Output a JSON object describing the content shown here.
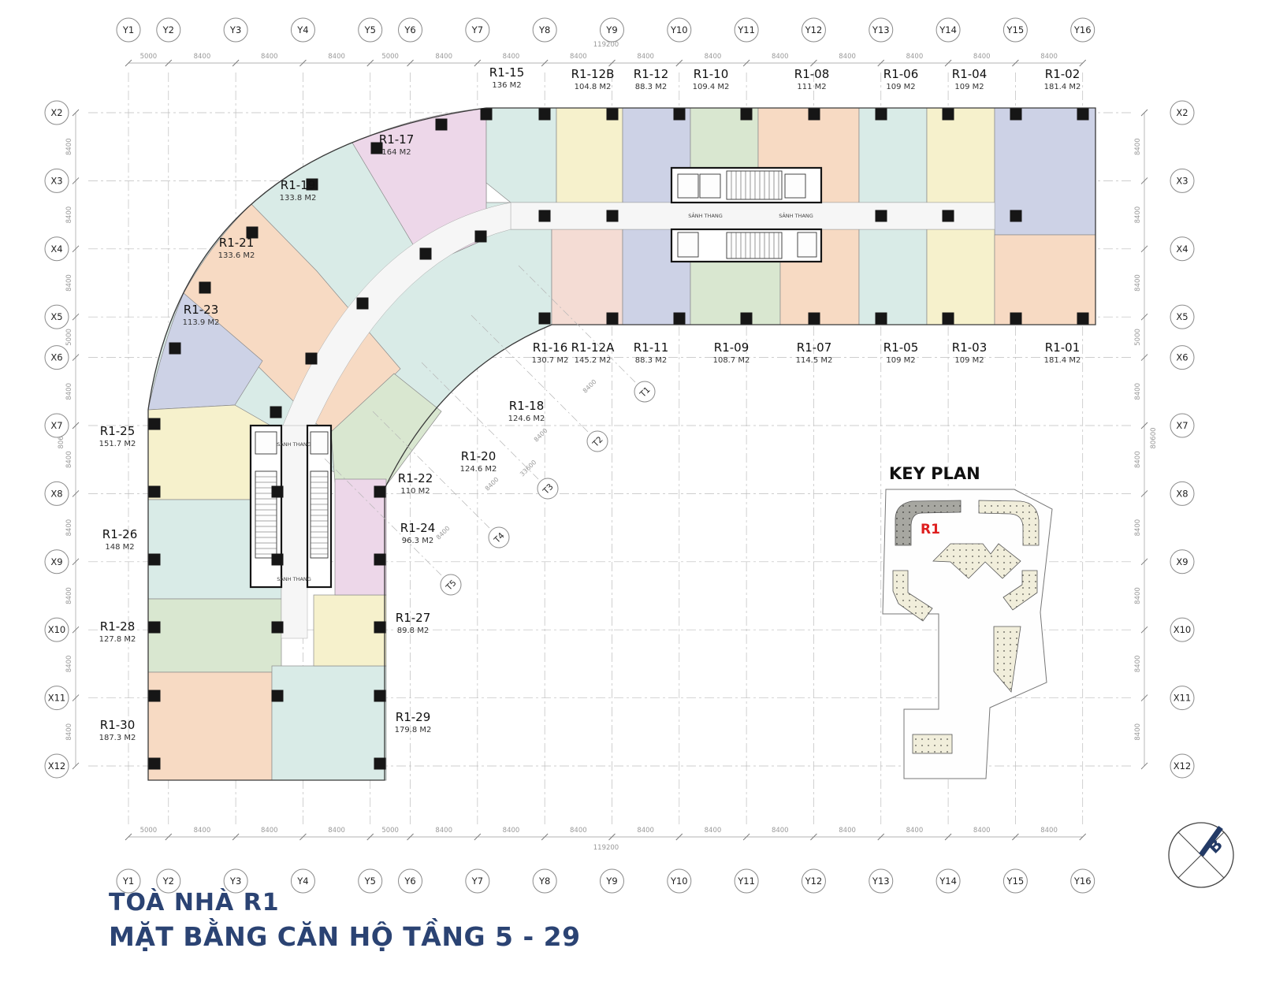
{
  "title": {
    "building": "TOÀ NHÀ R1",
    "subtitle": "MẶT BẰNG CĂN HỘ TẦNG 5 - 29"
  },
  "key_plan": {
    "title": "KEY PLAN",
    "highlight": "R1"
  },
  "compass": {
    "label": "B"
  },
  "core": {
    "lobby_label": "SẢNH THANG"
  },
  "grid": {
    "y": {
      "labels": [
        "Y1",
        "Y2",
        "Y3",
        "Y4",
        "Y5",
        "Y6",
        "Y7",
        "Y8",
        "Y9",
        "Y10",
        "Y11",
        "Y12",
        "Y13",
        "Y14",
        "Y15",
        "Y16"
      ],
      "segments": [
        "5000",
        "8400",
        "8400",
        "8400",
        "5000",
        "8400",
        "8400",
        "8400",
        "8400",
        "8400",
        "8400",
        "8400",
        "8400",
        "8400",
        "8400"
      ],
      "total": "119200"
    },
    "x": {
      "labels": [
        "X2",
        "X3",
        "X4",
        "X5",
        "X6",
        "X7",
        "X8",
        "X9",
        "X10",
        "X11",
        "X12"
      ],
      "segments": [
        "8400",
        "8400",
        "8400",
        "5000",
        "8400",
        "8400",
        "8400",
        "8400",
        "8400",
        "8400"
      ],
      "total": "80600"
    },
    "t": {
      "labels": [
        "T1",
        "T2",
        "T3",
        "T4",
        "T5"
      ],
      "segment": "8400",
      "total": "33600"
    }
  },
  "units": [
    {
      "id": "R1-01",
      "area": "181.4 M2",
      "color_key": "orange"
    },
    {
      "id": "R1-02",
      "area": "181.4 M2",
      "color_key": "lavender"
    },
    {
      "id": "R1-03",
      "area": "109 M2",
      "color_key": "yellow"
    },
    {
      "id": "R1-04",
      "area": "109 M2",
      "color_key": "yellow"
    },
    {
      "id": "R1-05",
      "area": "109 M2",
      "color_key": "teal"
    },
    {
      "id": "R1-06",
      "area": "109 M2",
      "color_key": "teal"
    },
    {
      "id": "R1-07",
      "area": "114.5 M2",
      "color_key": "orange"
    },
    {
      "id": "R1-08",
      "area": "111 M2",
      "color_key": "orange"
    },
    {
      "id": "R1-09",
      "area": "108.7 M2",
      "color_key": "green"
    },
    {
      "id": "R1-10",
      "area": "109.4 M2",
      "color_key": "green"
    },
    {
      "id": "R1-11",
      "area": "88.3 M2",
      "color_key": "lavender"
    },
    {
      "id": "R1-12",
      "area": "88.3 M2",
      "color_key": "lavender"
    },
    {
      "id": "R1-12A",
      "area": "145.2 M2",
      "color_key": "salmon"
    },
    {
      "id": "R1-12B",
      "area": "104.8 M2",
      "color_key": "yellow"
    },
    {
      "id": "R1-15",
      "area": "136 M2",
      "color_key": "teal"
    },
    {
      "id": "R1-16",
      "area": "130.7 M2",
      "color_key": "teal"
    },
    {
      "id": "R1-17",
      "area": "164 M2",
      "color_key": "pink"
    },
    {
      "id": "R1-18",
      "area": "124.6 M2",
      "color_key": "teal"
    },
    {
      "id": "R1-19",
      "area": "133.8 M2",
      "color_key": "teal"
    },
    {
      "id": "R1-20",
      "area": "124.6 M2",
      "color_key": "orange"
    },
    {
      "id": "R1-21",
      "area": "133.6 M2",
      "color_key": "orange"
    },
    {
      "id": "R1-22",
      "area": "110 M2",
      "color_key": "green"
    },
    {
      "id": "R1-23",
      "area": "113.9 M2",
      "color_key": "lavender"
    },
    {
      "id": "R1-24",
      "area": "96.3 M2",
      "color_key": "pink"
    },
    {
      "id": "R1-25",
      "area": "151.7 M2",
      "color_key": "yellow"
    },
    {
      "id": "R1-26",
      "area": "148 M2",
      "color_key": "teal"
    },
    {
      "id": "R1-27",
      "area": "89.8 M2",
      "color_key": "yellow"
    },
    {
      "id": "R1-28",
      "area": "127.8 M2",
      "color_key": "green"
    },
    {
      "id": "R1-29",
      "area": "179.8 M2",
      "color_key": "teal"
    },
    {
      "id": "R1-30",
      "area": "187.3 M2",
      "color_key": "orange"
    }
  ],
  "colors": {
    "teal": "#d9ebe7",
    "yellow": "#f6f1cc",
    "lavender": "#cdd2e6",
    "green": "#d9e7d0",
    "orange": "#f7dac3",
    "pink": "#edd7e9",
    "salmon": "#f4dcd4",
    "navy": "#2b4373",
    "red": "#de1f1f",
    "keyplan_cream": "#f1eedb",
    "keyplan_gray": "#a7a7a1"
  }
}
